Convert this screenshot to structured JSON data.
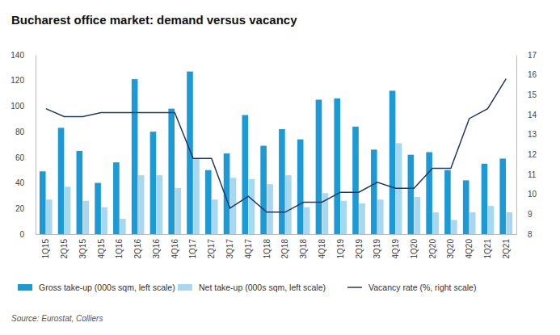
{
  "chart_data": {
    "type": "bar",
    "title": "Bucharest office market: demand versus vacancy",
    "source": "Source: Eurostat, Colliers",
    "categories": [
      "1Q15",
      "2Q15",
      "3Q15",
      "4Q15",
      "1Q16",
      "2Q16",
      "3Q16",
      "4Q16",
      "1Q17",
      "2Q17",
      "3Q17",
      "4Q17",
      "1Q18",
      "2Q18",
      "3Q18",
      "4Q18",
      "1Q19",
      "2Q19",
      "3Q19",
      "4Q19",
      "1Q20",
      "2Q20",
      "3Q20",
      "4Q20",
      "1Q21",
      "2Q21"
    ],
    "series": [
      {
        "name": "Gross take-up (000s sqm, left scale)",
        "type": "bar",
        "color": "#1b9ad6",
        "values": [
          49,
          83,
          65,
          40,
          56,
          121,
          80,
          98,
          127,
          50,
          63,
          93,
          69,
          82,
          74,
          105,
          106,
          84,
          66,
          112,
          62,
          64,
          50,
          42,
          55,
          59
        ]
      },
      {
        "name": "Net take-up (000s sqm, left scale)",
        "type": "bar",
        "color": "#a8d8f0",
        "values": [
          27,
          37,
          26,
          21,
          12,
          46,
          46,
          36,
          59,
          27,
          44,
          43,
          39,
          46,
          21,
          32,
          26,
          24,
          27,
          71,
          29,
          17,
          11,
          17,
          22,
          17
        ]
      },
      {
        "name": "Vacancy rate (%, right scale)",
        "type": "line",
        "axis": "y2",
        "color": "#1f3864",
        "values": [
          14.3,
          13.9,
          13.9,
          14.1,
          14.1,
          14.1,
          14.1,
          14.1,
          11.8,
          11.8,
          9.3,
          9.9,
          9.1,
          9.1,
          9.6,
          9.6,
          10.1,
          10.1,
          10.6,
          10.3,
          10.3,
          11.3,
          11.3,
          13.8,
          14.3,
          15.8
        ]
      }
    ],
    "ylim": [
      0,
      140
    ],
    "yticks": [
      0,
      20,
      40,
      60,
      80,
      100,
      120,
      140
    ],
    "y2lim": [
      8,
      17
    ],
    "y2ticks": [
      8,
      9,
      10,
      11,
      12,
      13,
      14,
      15,
      16,
      17
    ],
    "grid": false,
    "legend": "bottom"
  }
}
